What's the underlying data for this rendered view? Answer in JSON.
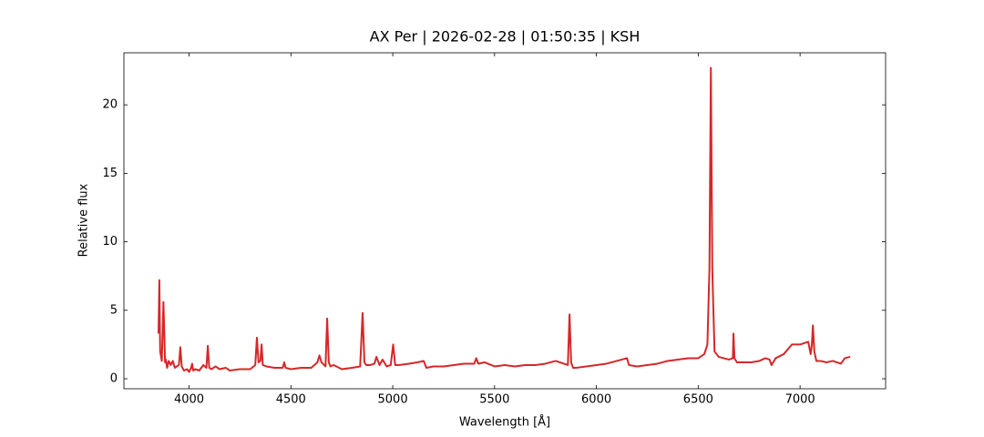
{
  "chart_data": {
    "type": "line",
    "title": "AX Per | 2026-02-28 | 01:50:35 | KSH",
    "x_label": "Wavelength [Å]",
    "y_label": "Relative flux",
    "xlim": [
      3680,
      7420
    ],
    "ylim": [
      -0.73,
      23.8
    ],
    "xticks": [
      4000,
      4500,
      5000,
      5500,
      6000,
      6500,
      7000
    ],
    "yticks": [
      0,
      5,
      10,
      15,
      20
    ],
    "series": [
      {
        "color": "#d62728",
        "x": [
          3850,
          3854,
          3858,
          3866,
          3874,
          3878,
          3882,
          3886,
          3892,
          3900,
          3910,
          3920,
          3930,
          3950,
          3957,
          3964,
          3975,
          3990,
          4000,
          4010,
          4015,
          4020,
          4030,
          4050,
          4070,
          4085,
          4092,
          4099,
          4110,
          4130,
          4150,
          4180,
          4200,
          4250,
          4300,
          4325,
          4333,
          4341,
          4350,
          4356,
          4362,
          4380,
          4420,
          4460,
          4467,
          4474,
          4500,
          4550,
          4600,
          4630,
          4640,
          4650,
          4670,
          4678,
          4686,
          4694,
          4710,
          4750,
          4800,
          4840,
          4852,
          4861,
          4870,
          4890,
          4910,
          4920,
          4935,
          4950,
          4970,
          4990,
          5002,
          5012,
          5030,
          5080,
          5120,
          5152,
          5165,
          5200,
          5250,
          5300,
          5350,
          5400,
          5410,
          5420,
          5450,
          5500,
          5550,
          5600,
          5650,
          5700,
          5750,
          5800,
          5840,
          5860,
          5868,
          5876,
          5885,
          5900,
          5950,
          6000,
          6050,
          6100,
          6150,
          6160,
          6200,
          6250,
          6300,
          6350,
          6400,
          6450,
          6500,
          6530,
          6545,
          6555,
          6562,
          6569,
          6580,
          6600,
          6650,
          6670,
          6673,
          6678,
          6690,
          6720,
          6760,
          6800,
          6830,
          6850,
          6860,
          6880,
          6920,
          6960,
          7000,
          7040,
          7052,
          7058,
          7063,
          7070,
          7080,
          7100,
          7130,
          7160,
          7200,
          7220,
          7246
        ],
        "values": [
          3.3,
          7.2,
          2.0,
          1.3,
          5.6,
          3.5,
          1.2,
          1.4,
          0.8,
          1.3,
          1.0,
          1.3,
          0.8,
          1.0,
          2.3,
          0.9,
          0.6,
          0.7,
          0.5,
          0.8,
          1.1,
          0.6,
          0.7,
          0.6,
          1.0,
          0.8,
          2.4,
          0.8,
          0.7,
          0.9,
          0.7,
          0.8,
          0.6,
          0.7,
          0.7,
          1.0,
          3.0,
          1.2,
          1.3,
          2.5,
          1.0,
          0.9,
          0.8,
          0.8,
          1.2,
          0.8,
          0.7,
          0.8,
          0.8,
          1.2,
          1.7,
          1.2,
          0.9,
          4.4,
          1.2,
          0.9,
          1.0,
          0.7,
          0.8,
          0.9,
          4.8,
          1.2,
          1.0,
          1.0,
          1.1,
          1.6,
          1.0,
          1.4,
          0.9,
          1.0,
          2.5,
          1.0,
          1.0,
          1.1,
          1.2,
          1.3,
          0.8,
          0.9,
          0.9,
          1.0,
          1.1,
          1.1,
          1.5,
          1.1,
          1.2,
          0.9,
          1.0,
          0.9,
          1.0,
          1.0,
          1.1,
          1.3,
          1.1,
          1.0,
          4.7,
          1.2,
          0.8,
          0.8,
          0.9,
          1.0,
          1.1,
          1.3,
          1.5,
          1.0,
          0.9,
          1.0,
          1.1,
          1.3,
          1.4,
          1.5,
          1.5,
          1.8,
          2.5,
          8.0,
          22.7,
          8.0,
          2.0,
          1.6,
          1.4,
          1.5,
          3.3,
          1.5,
          1.2,
          1.2,
          1.2,
          1.3,
          1.5,
          1.4,
          1.0,
          1.5,
          1.8,
          2.5,
          2.5,
          2.7,
          1.8,
          2.5,
          3.9,
          2.0,
          1.3,
          1.3,
          1.2,
          1.3,
          1.1,
          1.5,
          1.6
        ]
      }
    ]
  }
}
